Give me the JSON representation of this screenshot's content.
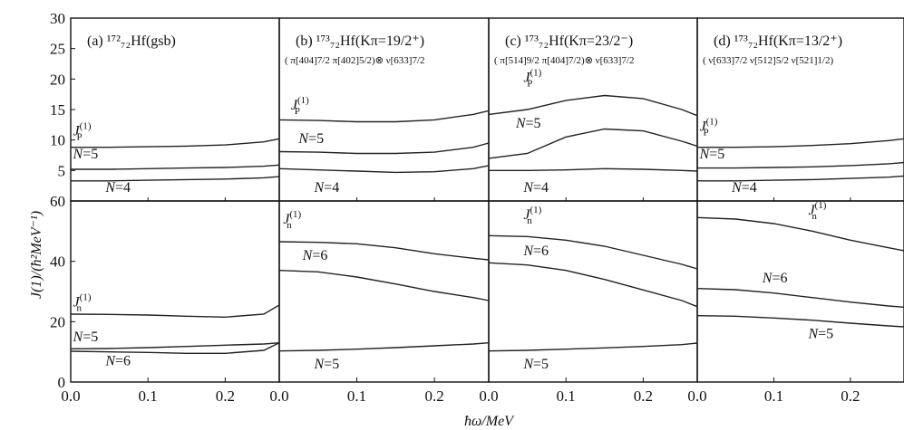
{
  "chart_data": {
    "type": "line",
    "xlabel": "ħω/MeV",
    "ylabel": "J(1)/(ħ²MeV⁻¹)",
    "x_ticks": [
      "0.0",
      "0.1",
      "0.2"
    ],
    "top_y_ticks": [
      "5",
      "10",
      "15",
      "20",
      "25",
      "30"
    ],
    "bottom_y_ticks": [
      "0",
      "20",
      "40",
      "60"
    ],
    "top_ylim": [
      0,
      30
    ],
    "bottom_ylim": [
      0,
      60
    ],
    "xlim": [
      0,
      0.27
    ],
    "panels": [
      {
        "label": "(a)",
        "title": "¹⁷²₇₂Hf(gsb)",
        "config": "",
        "top_series": [
          {
            "name": "J_P(1)",
            "x": [
              0.0,
              0.05,
              0.1,
              0.15,
              0.2,
              0.25,
              0.27
            ],
            "y": [
              8.8,
              8.8,
              8.9,
              9.0,
              9.2,
              9.7,
              10.2
            ]
          },
          {
            "name": "N=5",
            "x": [
              0.0,
              0.05,
              0.1,
              0.15,
              0.2,
              0.25,
              0.27
            ],
            "y": [
              5.2,
              5.2,
              5.3,
              5.4,
              5.5,
              5.7,
              5.9
            ]
          },
          {
            "name": "N=4",
            "x": [
              0.0,
              0.05,
              0.1,
              0.15,
              0.2,
              0.25,
              0.27
            ],
            "y": [
              3.3,
              3.3,
              3.4,
              3.5,
              3.6,
              3.8,
              4.0
            ]
          }
        ],
        "bottom_series": [
          {
            "name": "J_n(1)",
            "x": [
              0.0,
              0.05,
              0.1,
              0.15,
              0.2,
              0.25,
              0.27
            ],
            "y": [
              22.5,
              22.4,
              22.2,
              21.8,
              21.5,
              22.5,
              25.5
            ]
          },
          {
            "name": "N=5",
            "x": [
              0.0,
              0.05,
              0.1,
              0.15,
              0.2,
              0.25,
              0.27
            ],
            "y": [
              11.0,
              11.1,
              11.4,
              11.8,
              12.2,
              12.6,
              13.0
            ]
          },
          {
            "name": "N=6",
            "x": [
              0.0,
              0.05,
              0.1,
              0.15,
              0.2,
              0.25,
              0.27
            ],
            "y": [
              10.2,
              10.0,
              9.8,
              9.5,
              9.5,
              10.5,
              13.0
            ]
          }
        ],
        "top_labels": [
          {
            "text": "J_P(1)",
            "x": 0.003,
            "y": 10.8
          },
          {
            "text": "N=5",
            "x": 0.003,
            "y": 7.0
          },
          {
            "text": "N=4",
            "x": 0.045,
            "y": 1.5
          }
        ],
        "bottom_labels": [
          {
            "text": "J_n(1)",
            "x": 0.003,
            "y": 25.0
          },
          {
            "text": "N=5",
            "x": 0.003,
            "y": 13.5
          },
          {
            "text": "N=6",
            "x": 0.045,
            "y": 5.5
          }
        ]
      },
      {
        "label": "(b)",
        "title": "¹⁷³₇₂Hf(Kπ=19/2⁺)",
        "config": "( π[404]7/2 π[402]5/2)⊗ ν[633]7/2",
        "top_series": [
          {
            "name": "J_P(1)",
            "x": [
              0.0,
              0.05,
              0.1,
              0.15,
              0.2,
              0.25,
              0.27
            ],
            "y": [
              13.3,
              13.2,
              13.0,
              13.0,
              13.3,
              14.2,
              14.8
            ]
          },
          {
            "name": "N=5",
            "x": [
              0.0,
              0.05,
              0.1,
              0.15,
              0.2,
              0.25,
              0.27
            ],
            "y": [
              8.1,
              8.0,
              7.8,
              7.8,
              8.0,
              8.8,
              9.5
            ]
          },
          {
            "name": "N=4",
            "x": [
              0.0,
              0.05,
              0.1,
              0.15,
              0.2,
              0.25,
              0.27
            ],
            "y": [
              5.3,
              5.1,
              4.9,
              4.7,
              4.8,
              5.3,
              5.8
            ]
          }
        ],
        "bottom_series": [
          {
            "name": "J_n(1)",
            "x": [
              0.0,
              0.05,
              0.1,
              0.15,
              0.2,
              0.25,
              0.27
            ],
            "y": [
              46.5,
              46.3,
              45.8,
              44.5,
              42.5,
              41.0,
              40.5
            ]
          },
          {
            "name": "N=6",
            "x": [
              0.0,
              0.05,
              0.1,
              0.15,
              0.2,
              0.25,
              0.27
            ],
            "y": [
              37.0,
              36.5,
              34.8,
              32.5,
              30.0,
              28.0,
              27.0
            ]
          },
          {
            "name": "N=5",
            "x": [
              0.0,
              0.05,
              0.1,
              0.15,
              0.2,
              0.25,
              0.27
            ],
            "y": [
              10.3,
              10.5,
              10.9,
              11.4,
              12.0,
              12.6,
              13.0
            ]
          }
        ],
        "top_labels": [
          {
            "text": "J_P(1)",
            "x": 0.015,
            "y": 15.0
          },
          {
            "text": "N=5",
            "x": 0.025,
            "y": 9.5
          },
          {
            "text": "N=4",
            "x": 0.045,
            "y": 1.5
          }
        ],
        "bottom_labels": [
          {
            "text": "J_n(1)",
            "x": 0.005,
            "y": 52.5
          },
          {
            "text": "N=6",
            "x": 0.03,
            "y": 40.5
          },
          {
            "text": "N=5",
            "x": 0.045,
            "y": 4.5
          }
        ]
      },
      {
        "label": "(c)",
        "title": "¹⁷³₇₂Hf(Kπ=23/2⁻)",
        "config": "( π[514]9/2 π[404]7/2)⊗ ν[633]7/2",
        "top_series": [
          {
            "name": "J_P(1)",
            "x": [
              0.0,
              0.05,
              0.1,
              0.15,
              0.2,
              0.25,
              0.27
            ],
            "y": [
              14.2,
              15.0,
              16.5,
              17.3,
              16.8,
              15.0,
              14.0
            ]
          },
          {
            "name": "N=5",
            "x": [
              0.0,
              0.05,
              0.1,
              0.15,
              0.2,
              0.25,
              0.27
            ],
            "y": [
              7.0,
              7.8,
              10.5,
              11.8,
              11.5,
              9.8,
              9.0
            ]
          },
          {
            "name": "N=4",
            "x": [
              0.0,
              0.05,
              0.1,
              0.15,
              0.2,
              0.25,
              0.27
            ],
            "y": [
              5.0,
              5.0,
              5.1,
              5.3,
              5.2,
              5.0,
              4.9
            ]
          }
        ],
        "bottom_series": [
          {
            "name": "J_n(1)",
            "x": [
              0.0,
              0.05,
              0.1,
              0.15,
              0.2,
              0.25,
              0.27
            ],
            "y": [
              48.5,
              48.2,
              47.0,
              45.0,
              42.0,
              39.0,
              37.5
            ]
          },
          {
            "name": "N=6",
            "x": [
              0.0,
              0.05,
              0.1,
              0.15,
              0.2,
              0.25,
              0.27
            ],
            "y": [
              39.5,
              38.8,
              37.0,
              34.0,
              30.5,
              27.0,
              25.0
            ]
          },
          {
            "name": "N=5",
            "x": [
              0.0,
              0.05,
              0.1,
              0.15,
              0.2,
              0.25,
              0.27
            ],
            "y": [
              10.3,
              10.5,
              10.9,
              11.3,
              11.8,
              12.4,
              12.9
            ]
          }
        ],
        "top_labels": [
          {
            "text": "J_P(1)",
            "x": 0.045,
            "y": 19.5
          },
          {
            "text": "N=5",
            "x": 0.035,
            "y": 12.0
          },
          {
            "text": "N=4",
            "x": 0.045,
            "y": 1.5
          }
        ],
        "bottom_labels": [
          {
            "text": "J_n(1)",
            "x": 0.045,
            "y": 54.0
          },
          {
            "text": "N=6",
            "x": 0.045,
            "y": 42.0
          },
          {
            "text": "N=5",
            "x": 0.045,
            "y": 4.5
          }
        ]
      },
      {
        "label": "(d)",
        "title": "¹⁷³₇₂Hf(Kπ=13/2⁺)",
        "config": "( ν[633]7/2 ν[512]5/2 ν[521]1/2)",
        "top_series": [
          {
            "name": "J_P(1)",
            "x": [
              0.0,
              0.05,
              0.1,
              0.15,
              0.2,
              0.25,
              0.27
            ],
            "y": [
              8.8,
              8.8,
              8.9,
              9.1,
              9.4,
              9.9,
              10.2
            ]
          },
          {
            "name": "N=5",
            "x": [
              0.0,
              0.05,
              0.1,
              0.15,
              0.2,
              0.25,
              0.27
            ],
            "y": [
              5.4,
              5.4,
              5.5,
              5.6,
              5.8,
              6.1,
              6.3
            ]
          },
          {
            "name": "N=4",
            "x": [
              0.0,
              0.05,
              0.1,
              0.15,
              0.2,
              0.25,
              0.27
            ],
            "y": [
              3.3,
              3.3,
              3.4,
              3.5,
              3.7,
              3.9,
              4.1
            ]
          }
        ],
        "bottom_series": [
          {
            "name": "J_n(1)",
            "x": [
              0.0,
              0.05,
              0.1,
              0.15,
              0.2,
              0.25,
              0.27
            ],
            "y": [
              54.5,
              54.0,
              52.5,
              50.0,
              47.0,
              44.5,
              43.5
            ]
          },
          {
            "name": "N=6",
            "x": [
              0.0,
              0.05,
              0.1,
              0.15,
              0.2,
              0.25,
              0.27
            ],
            "y": [
              31.0,
              30.6,
              29.5,
              28.0,
              26.5,
              25.2,
              24.8
            ]
          },
          {
            "name": "N=5",
            "x": [
              0.0,
              0.05,
              0.1,
              0.15,
              0.2,
              0.25,
              0.27
            ],
            "y": [
              22.0,
              21.8,
              21.2,
              20.5,
              19.5,
              18.6,
              18.3
            ]
          }
        ],
        "top_labels": [
          {
            "text": "J_P(1)",
            "x": 0.003,
            "y": 11.5
          },
          {
            "text": "N=5",
            "x": 0.003,
            "y": 7.0
          },
          {
            "text": "N=4",
            "x": 0.045,
            "y": 1.5
          }
        ],
        "bottom_labels": [
          {
            "text": "J_n(1)",
            "x": 0.145,
            "y": 55.5
          },
          {
            "text": "N=6",
            "x": 0.085,
            "y": 33.0
          },
          {
            "text": "N=5",
            "x": 0.145,
            "y": 14.5
          }
        ]
      }
    ]
  }
}
